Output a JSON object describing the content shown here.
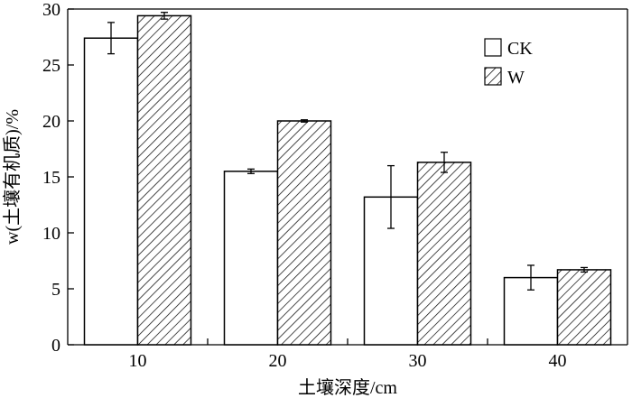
{
  "chart_data": {
    "type": "bar",
    "categories": [
      "10",
      "20",
      "30",
      "40"
    ],
    "series": [
      {
        "name": "CK",
        "values": [
          27.4,
          15.5,
          13.2,
          6.0
        ],
        "errors": [
          1.4,
          0.2,
          2.8,
          1.1
        ],
        "fill": "#ffffff"
      },
      {
        "name": "W",
        "values": [
          29.4,
          20.0,
          16.3,
          6.7
        ],
        "errors": [
          0.3,
          0.1,
          0.9,
          0.2
        ],
        "fill": "hatch"
      }
    ],
    "xlabel": "土壤深度/cm",
    "ylabel": "w(土壤有机质)/%",
    "ylim": [
      0,
      30
    ],
    "yticks": [
      "0",
      "5",
      "10",
      "15",
      "20",
      "25",
      "30"
    ],
    "grid": false,
    "legend": "top-right"
  }
}
